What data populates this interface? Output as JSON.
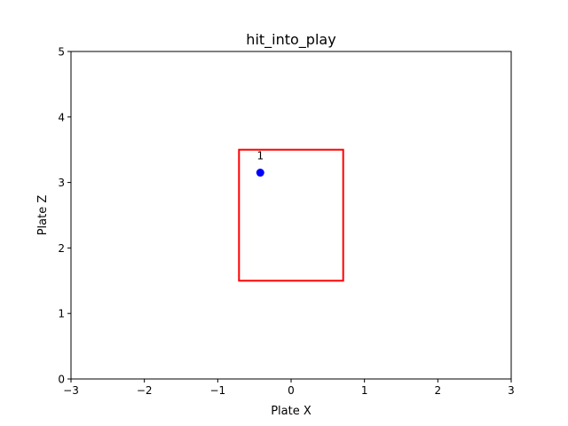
{
  "chart_data": {
    "type": "scatter",
    "title": "hit_into_play",
    "xlabel": "Plate X",
    "ylabel": "Plate Z",
    "xlim": [
      -3,
      3
    ],
    "ylim": [
      0,
      5
    ],
    "xticks": [
      -3,
      -2,
      -1,
      0,
      1,
      2,
      3
    ],
    "yticks": [
      0,
      1,
      2,
      3,
      4,
      5
    ],
    "xtick_labels": [
      "−3",
      "−2",
      "−1",
      "0",
      "1",
      "2",
      "3"
    ],
    "ytick_labels": [
      "0",
      "1",
      "2",
      "3",
      "4",
      "5"
    ],
    "grid": false,
    "legend": "none",
    "points": [
      {
        "x": -0.42,
        "y": 3.15,
        "label": "1",
        "color": "#0000ff"
      }
    ],
    "strike_zone": {
      "x": [
        -0.71,
        0.71
      ],
      "y": [
        1.5,
        3.5
      ],
      "color": "#ff0000"
    }
  }
}
